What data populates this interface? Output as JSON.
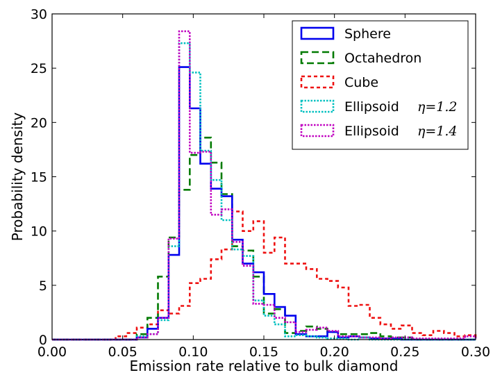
{
  "chart_data": {
    "type": "histogram-step",
    "xlabel": "Emission rate relative to bulk diamond",
    "ylabel": "Probability density",
    "xlim": [
      0.0,
      0.3
    ],
    "ylim": [
      0,
      30
    ],
    "xticks": [
      "0.00",
      "0.05",
      "0.10",
      "0.15",
      "0.20",
      "0.25",
      "0.30"
    ],
    "yticks": [
      "0",
      "5",
      "10",
      "15",
      "20",
      "25",
      "30"
    ],
    "bin_edges": [
      0.0,
      0.0075,
      0.015,
      0.0225,
      0.03,
      0.0375,
      0.045,
      0.0525,
      0.06,
      0.0675,
      0.075,
      0.0825,
      0.09,
      0.0975,
      0.105,
      0.1125,
      0.12,
      0.1275,
      0.135,
      0.1425,
      0.15,
      0.1575,
      0.165,
      0.1725,
      0.18,
      0.1875,
      0.195,
      0.2025,
      0.21,
      0.2175,
      0.225,
      0.2325,
      0.24,
      0.2475,
      0.255,
      0.2625,
      0.27,
      0.2775,
      0.285,
      0.2925,
      0.3
    ],
    "legend_position": "upper right",
    "series": [
      {
        "name": "Sphere",
        "color": "#0000ee",
        "dash": "solid",
        "values": [
          0,
          0,
          0,
          0,
          0,
          0,
          0,
          0,
          0.2,
          1.0,
          2.0,
          7.8,
          25.1,
          21.3,
          16.2,
          13.9,
          13.2,
          9.2,
          7.0,
          6.2,
          4.2,
          3.0,
          2.2,
          0.5,
          0.3,
          0.3,
          0.7,
          0.2,
          0.3,
          0.2,
          0.1,
          0.1,
          0.1,
          0,
          0,
          0,
          0,
          0,
          0,
          0
        ]
      },
      {
        "name": "Octahedron",
        "color": "#007a00",
        "dash": "long",
        "values": [
          0,
          0,
          0,
          0,
          0,
          0,
          0,
          0,
          0.5,
          2.0,
          5.8,
          9.4,
          13.8,
          17.0,
          18.6,
          16.3,
          13.4,
          8.6,
          8.2,
          5.8,
          2.4,
          2.8,
          0.6,
          0.8,
          1.2,
          1.0,
          0.7,
          0.5,
          0.5,
          0.5,
          0.6,
          0.3,
          0.2,
          0.2,
          0,
          0,
          0,
          0,
          0,
          0
        ]
      },
      {
        "name": "Cube",
        "color": "#ee1111",
        "dash": "short",
        "values": [
          0,
          0,
          0,
          0,
          0,
          0,
          0.3,
          0.6,
          1.1,
          1.4,
          2.7,
          2.4,
          3.1,
          5.2,
          5.6,
          7.4,
          8.3,
          11.8,
          10.0,
          10.9,
          8.0,
          9.4,
          7.0,
          7.0,
          6.5,
          5.6,
          5.4,
          4.8,
          3.1,
          3.2,
          2.0,
          1.4,
          1.0,
          1.3,
          0.6,
          0.4,
          0.8,
          0.6,
          0.3,
          0.4
        ]
      },
      {
        "name": "Ellipsoid",
        "math": "η=1.2",
        "color": "#00c0c0",
        "dash": "dotted",
        "values": [
          0,
          0,
          0,
          0,
          0,
          0,
          0,
          0,
          0.3,
          0.5,
          1.8,
          8.6,
          27.3,
          24.6,
          17.4,
          14.7,
          11.0,
          8.3,
          7.7,
          3.6,
          2.2,
          1.4,
          0.3,
          0.4,
          0.3,
          0.2,
          0.1,
          0.1,
          0,
          0.2,
          0,
          0,
          0,
          0,
          0,
          0,
          0,
          0,
          0,
          0
        ]
      },
      {
        "name": "Ellipsoid",
        "math": "η=1.4",
        "color": "#c000c0",
        "dash": "dotted",
        "values": [
          0,
          0,
          0,
          0,
          0,
          0,
          0,
          0,
          0.2,
          0.5,
          2.0,
          9.3,
          28.4,
          17.2,
          17.3,
          11.5,
          12.0,
          9.0,
          6.8,
          3.3,
          3.2,
          2.0,
          1.6,
          0.7,
          0.9,
          1.1,
          0.8,
          0.3,
          0.3,
          0.2,
          0.2,
          0.1,
          0.2,
          0.2,
          0.1,
          0.1,
          0.1,
          0.1,
          0.1,
          0.3
        ]
      }
    ]
  }
}
